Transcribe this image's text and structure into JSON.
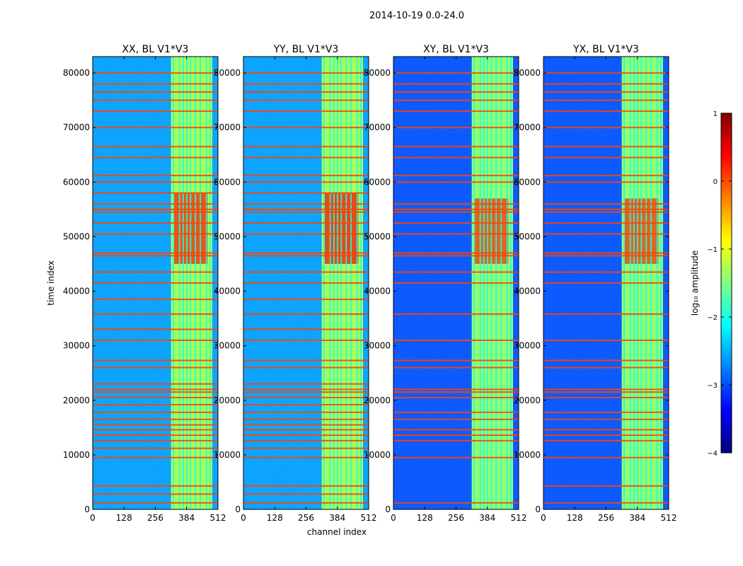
{
  "figure_title": "2014-10-19 0.0-24.0",
  "chart_data": {
    "type": "heatmap",
    "shared": {
      "xlabel": "channel index",
      "ylabel": "time index",
      "xlim": [
        0,
        512
      ],
      "ylim": [
        0,
        83000
      ],
      "x_ticks": [
        0,
        128,
        256,
        384,
        512
      ],
      "y_ticks": [
        0,
        10000,
        20000,
        30000,
        40000,
        50000,
        60000,
        70000,
        80000
      ],
      "colormap": "jet"
    },
    "panels": [
      {
        "title": "XX, BL V1*V3",
        "pol": "XX",
        "has_ylabel": true,
        "low_channel_level": -2.6,
        "band_level": -1.3,
        "rfi_channels": [
          330,
          355,
          370,
          385,
          400,
          420,
          440,
          465,
          480
        ],
        "flagged_rows": [
          1200,
          2800,
          4300,
          9500,
          11200,
          12600,
          13600,
          14600,
          15500,
          16500,
          17800,
          19200,
          20500,
          21500,
          22000,
          23000,
          26000,
          27300,
          31000,
          33000,
          35800,
          38500,
          41500,
          43500,
          46500,
          47000,
          50500,
          52500,
          54500,
          55000,
          56000,
          58000,
          60000,
          61200,
          64500,
          66500,
          70000,
          73000,
          75000,
          76500,
          78000,
          80000
        ],
        "hot_region": {
          "t0": 45000,
          "t1": 58000,
          "level": 0.3
        }
      },
      {
        "title": "YY, BL V1*V3",
        "pol": "YY",
        "has_ylabel": false,
        "low_channel_level": -2.6,
        "band_level": -1.3,
        "rfi_channels": [
          330,
          355,
          370,
          385,
          400,
          420,
          440,
          465,
          480
        ],
        "flagged_rows": [
          1200,
          2800,
          4300,
          9500,
          11200,
          12600,
          13600,
          14600,
          15500,
          16500,
          17800,
          19200,
          20500,
          21500,
          22000,
          23000,
          26000,
          27300,
          31000,
          33000,
          35800,
          38500,
          41500,
          43500,
          46500,
          47000,
          50500,
          52500,
          54500,
          55000,
          56000,
          58000,
          60000,
          61200,
          64500,
          66500,
          70000,
          73000,
          75000,
          76500,
          78000,
          80000
        ],
        "hot_region": {
          "t0": 45000,
          "t1": 58000,
          "level": 0.4
        }
      },
      {
        "title": "XY, BL V1*V3",
        "pol": "XY",
        "has_ylabel": false,
        "low_channel_level": -3.0,
        "band_level": -1.4,
        "rfi_channels": [
          330,
          355,
          370,
          385,
          400,
          420,
          440,
          465,
          480
        ],
        "flagged_rows": [
          1200,
          9500,
          12600,
          13600,
          14600,
          16500,
          17800,
          20500,
          21500,
          22000,
          26000,
          27300,
          31000,
          35800,
          41500,
          43500,
          46500,
          47000,
          50500,
          52500,
          54500,
          55000,
          56000,
          60000,
          61200,
          64500,
          66500,
          70000,
          73000,
          75000,
          76500,
          78000,
          80000
        ],
        "hot_region": {
          "t0": 45000,
          "t1": 57000,
          "level": 0.2
        }
      },
      {
        "title": "YX, BL V1*V3",
        "pol": "YX",
        "has_ylabel": false,
        "low_channel_level": -3.0,
        "band_level": -1.4,
        "rfi_channels": [
          330,
          355,
          370,
          385,
          400,
          420,
          440,
          465,
          480
        ],
        "flagged_rows": [
          1200,
          4300,
          9500,
          12600,
          13600,
          14600,
          16500,
          17800,
          20500,
          21500,
          22000,
          26000,
          27300,
          31000,
          35800,
          41500,
          43500,
          46500,
          47000,
          50500,
          52500,
          54500,
          55000,
          56000,
          60000,
          61200,
          64500,
          66500,
          70000,
          73000,
          75000,
          76500,
          78000,
          80000
        ],
        "hot_region": {
          "t0": 45000,
          "t1": 57000,
          "level": 0.2
        }
      }
    ],
    "colorbar": {
      "label": "log₁₀ amplitude",
      "min": -4,
      "max": 1,
      "ticks": [
        1,
        0,
        -1,
        -2,
        -3,
        -4
      ],
      "tick_labels": [
        "1",
        "0",
        "−1",
        "−2",
        "−3",
        "−4"
      ]
    }
  }
}
